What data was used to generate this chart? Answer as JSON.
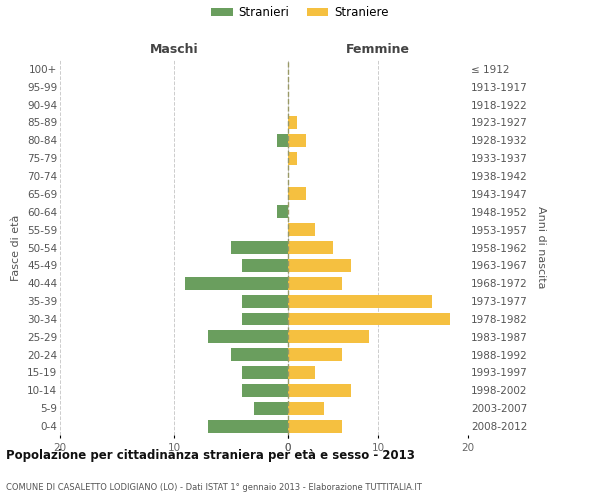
{
  "age_groups": [
    "0-4",
    "5-9",
    "10-14",
    "15-19",
    "20-24",
    "25-29",
    "30-34",
    "35-39",
    "40-44",
    "45-49",
    "50-54",
    "55-59",
    "60-64",
    "65-69",
    "70-74",
    "75-79",
    "80-84",
    "85-89",
    "90-94",
    "95-99",
    "100+"
  ],
  "birth_years": [
    "2008-2012",
    "2003-2007",
    "1998-2002",
    "1993-1997",
    "1988-1992",
    "1983-1987",
    "1978-1982",
    "1973-1977",
    "1968-1972",
    "1963-1967",
    "1958-1962",
    "1953-1957",
    "1948-1952",
    "1943-1947",
    "1938-1942",
    "1933-1937",
    "1928-1932",
    "1923-1927",
    "1918-1922",
    "1913-1917",
    "≤ 1912"
  ],
  "maschi": [
    7,
    3,
    4,
    4,
    5,
    7,
    4,
    4,
    9,
    4,
    5,
    0,
    1,
    0,
    0,
    0,
    1,
    0,
    0,
    0,
    0
  ],
  "femmine": [
    6,
    4,
    7,
    3,
    6,
    9,
    18,
    16,
    6,
    7,
    5,
    3,
    0,
    2,
    0,
    1,
    2,
    1,
    0,
    0,
    0
  ],
  "male_color": "#6a9e5e",
  "female_color": "#f5c040",
  "background_color": "#ffffff",
  "grid_color": "#cccccc",
  "title": "Popolazione per cittadinanza straniera per età e sesso - 2013",
  "subtitle": "COMUNE DI CASALETTO LODIGIANO (LO) - Dati ISTAT 1° gennaio 2013 - Elaborazione TUTTITALIA.IT",
  "left_header": "Maschi",
  "right_header": "Femmine",
  "ylabel_left": "Fasce di età",
  "ylabel_right": "Anni di nascita",
  "legend_male": "Stranieri",
  "legend_female": "Straniere",
  "xlim": 20,
  "dashed_line_color": "#999966"
}
